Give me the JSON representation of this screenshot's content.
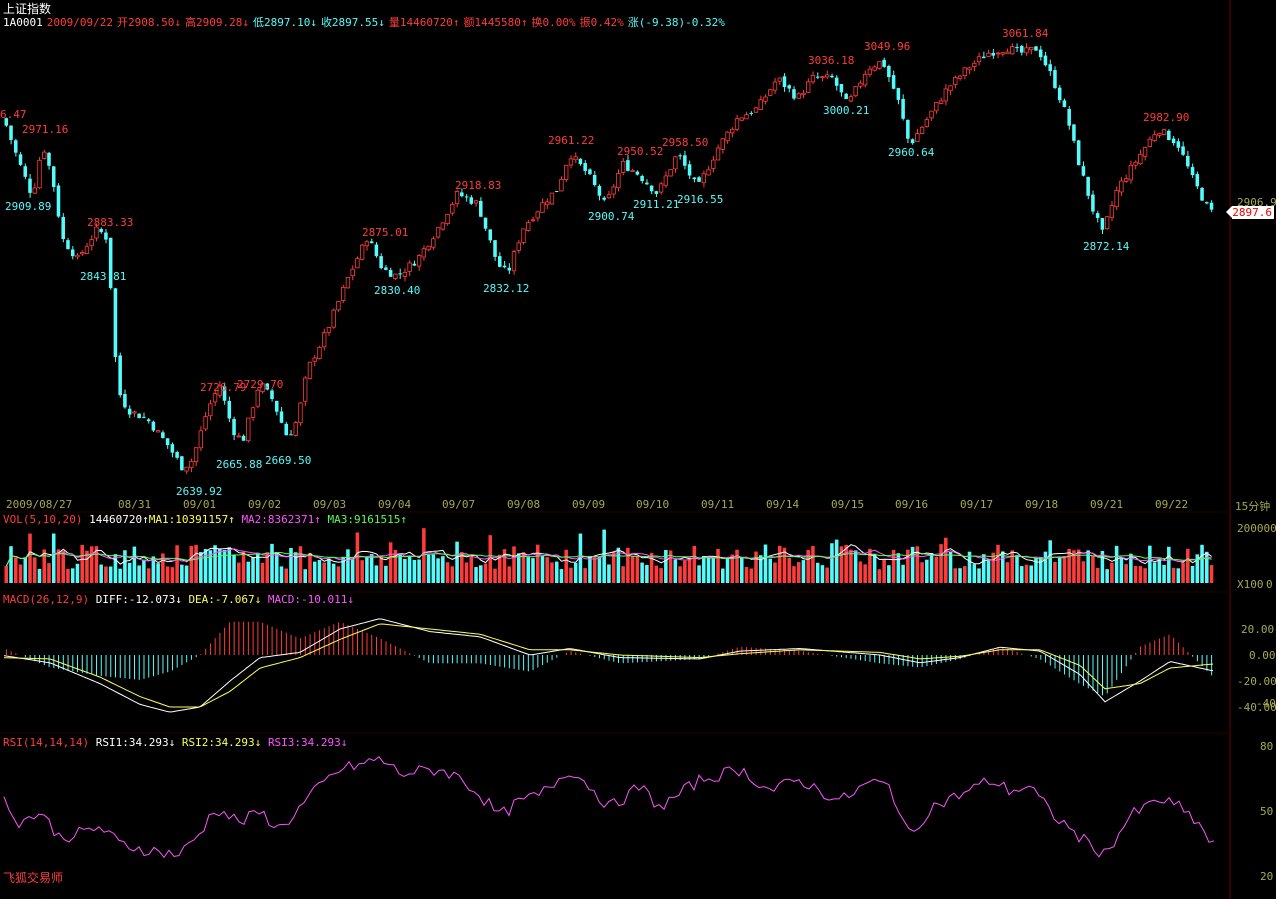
{
  "header": {
    "title": "上证指数",
    "code": "1A0001",
    "date": "2009/09/22",
    "open": "开2908.50↓",
    "high": "高2909.28↓",
    "low": "低2897.10↓",
    "close": "收2897.55↓",
    "volume": "量14460720↑",
    "amount": "额1445580↑",
    "turnover": "换0.00%",
    "amplitude": "振0.42%",
    "change": "涨(-9.38)-0.32%"
  },
  "colors": {
    "bg": "#000000",
    "up": "#ff3c3c",
    "down": "#54fcfc",
    "ma1": "#ffffff",
    "ma2": "#ff54ff",
    "ma3": "#54ff54",
    "diff": "#ffffff",
    "dea": "#ffff54",
    "rsi": "#ff54ff",
    "axis": "#a8a854"
  },
  "price_panel": {
    "high_labels": [
      "6.47",
      "2971.16",
      "2883.33",
      "2726.79",
      "2729.70",
      "2875.01",
      "2918.83",
      "2961.22",
      "2950.52",
      "2958.50",
      "3036.18",
      "3049.96",
      "3061.84",
      "2982.90"
    ],
    "low_labels": [
      "2909.89",
      "2843.81",
      "2639.92",
      "2665.88",
      "2669.50",
      "2830.40",
      "2832.12",
      "2900.74",
      "2911.21",
      "2916.55",
      "3000.21",
      "2960.64",
      "2872.14"
    ],
    "right_axis_value": "2906.9",
    "current_price": "2897.6",
    "dates": [
      "2009/08/27",
      "08/31",
      "09/01",
      "09/02",
      "09/03",
      "09/04",
      "09/07",
      "09/08",
      "09/09",
      "09/10",
      "09/11",
      "09/14",
      "09/15",
      "09/16",
      "09/17",
      "09/18",
      "09/21",
      "09/22"
    ],
    "period": "15分钟"
  },
  "vol_panel": {
    "name": "VOL(5,10,20)",
    "value": "14460720↑",
    "ma1": "MA1:10391157↑",
    "ma2": "MA2:8362371↑",
    "ma3": "MA3:9161515↑",
    "axis_top": "200000",
    "axis_unit": "X100",
    "axis_zero": "0"
  },
  "macd_panel": {
    "name": "MACD(26,12,9)",
    "diff": "DIFF:-12.073↓",
    "dea": "DEA:-7.067↓",
    "macd": "MACD:-10.011↓",
    "axis": [
      "20.00",
      "0.00",
      "-20.00",
      "-40.00"
    ],
    "axis_overlap": "-40"
  },
  "rsi_panel": {
    "name": "RSI(14,14,14)",
    "rsi1": "RSI1:34.293↓",
    "rsi2": "RSI2:34.293↓",
    "rsi3": "RSI3:34.293↓",
    "axis": [
      "80",
      "50",
      "20"
    ]
  },
  "watermark": "飞狐交易师",
  "chart_data": {
    "type": "candlestick",
    "price_path": [
      [
        0,
        2995
      ],
      [
        8,
        2985
      ],
      [
        20,
        2950
      ],
      [
        35,
        2912
      ],
      [
        45,
        2965
      ],
      [
        55,
        2930
      ],
      [
        65,
        2870
      ],
      [
        80,
        2850
      ],
      [
        90,
        2865
      ],
      [
        100,
        2880
      ],
      [
        110,
        2870
      ],
      [
        120,
        2720
      ],
      [
        130,
        2700
      ],
      [
        150,
        2690
      ],
      [
        170,
        2665
      ],
      [
        185,
        2642
      ],
      [
        195,
        2650
      ],
      [
        210,
        2700
      ],
      [
        222,
        2725
      ],
      [
        235,
        2680
      ],
      [
        245,
        2668
      ],
      [
        262,
        2727
      ],
      [
        275,
        2710
      ],
      [
        290,
        2672
      ],
      [
        300,
        2690
      ],
      [
        310,
        2740
      ],
      [
        330,
        2780
      ],
      [
        350,
        2830
      ],
      [
        370,
        2872
      ],
      [
        385,
        2840
      ],
      [
        400,
        2833
      ],
      [
        420,
        2850
      ],
      [
        440,
        2880
      ],
      [
        460,
        2915
      ],
      [
        480,
        2905
      ],
      [
        500,
        2845
      ],
      [
        510,
        2835
      ],
      [
        525,
        2880
      ],
      [
        545,
        2905
      ],
      [
        560,
        2920
      ],
      [
        572,
        2955
      ],
      [
        590,
        2935
      ],
      [
        608,
        2903
      ],
      [
        625,
        2945
      ],
      [
        640,
        2935
      ],
      [
        660,
        2915
      ],
      [
        680,
        2955
      ],
      [
        700,
        2920
      ],
      [
        720,
        2960
      ],
      [
        740,
        2990
      ],
      [
        760,
        3000
      ],
      [
        780,
        3030
      ],
      [
        800,
        3010
      ],
      [
        815,
        3030
      ],
      [
        835,
        3030
      ],
      [
        850,
        3003
      ],
      [
        870,
        3040
      ],
      [
        885,
        3047
      ],
      [
        900,
        3010
      ],
      [
        912,
        2963
      ],
      [
        930,
        2990
      ],
      [
        950,
        3020
      ],
      [
        970,
        3040
      ],
      [
        990,
        3055
      ],
      [
        1010,
        3060
      ],
      [
        1025,
        3055
      ],
      [
        1040,
        3060
      ],
      [
        1055,
        3030
      ],
      [
        1070,
        2990
      ],
      [
        1080,
        2950
      ],
      [
        1095,
        2900
      ],
      [
        1105,
        2875
      ],
      [
        1120,
        2920
      ],
      [
        1140,
        2950
      ],
      [
        1160,
        2980
      ],
      [
        1180,
        2965
      ],
      [
        1195,
        2930
      ],
      [
        1212,
        2897
      ]
    ],
    "price_ylim": [
      2620,
      3080
    ],
    "macd_diff_path": [
      [
        0,
        0
      ],
      [
        50,
        -6
      ],
      [
        100,
        -22
      ],
      [
        140,
        -38
      ],
      [
        170,
        -44
      ],
      [
        200,
        -40
      ],
      [
        230,
        -20
      ],
      [
        260,
        -2
      ],
      [
        300,
        2
      ],
      [
        340,
        20
      ],
      [
        380,
        28
      ],
      [
        430,
        18
      ],
      [
        480,
        14
      ],
      [
        530,
        0
      ],
      [
        570,
        5
      ],
      [
        620,
        -2
      ],
      [
        700,
        -3
      ],
      [
        740,
        3
      ],
      [
        800,
        5
      ],
      [
        880,
        0
      ],
      [
        920,
        -6
      ],
      [
        960,
        -2
      ],
      [
        1000,
        6
      ],
      [
        1040,
        3
      ],
      [
        1080,
        -15
      ],
      [
        1105,
        -36
      ],
      [
        1140,
        -20
      ],
      [
        1170,
        -5
      ],
      [
        1212,
        -12
      ]
    ],
    "macd_dea_path": [
      [
        0,
        -2
      ],
      [
        50,
        -3
      ],
      [
        100,
        -17
      ],
      [
        140,
        -32
      ],
      [
        170,
        -40
      ],
      [
        200,
        -40
      ],
      [
        230,
        -28
      ],
      [
        260,
        -10
      ],
      [
        300,
        -2
      ],
      [
        340,
        12
      ],
      [
        380,
        24
      ],
      [
        430,
        20
      ],
      [
        480,
        16
      ],
      [
        530,
        4
      ],
      [
        570,
        4
      ],
      [
        620,
        0
      ],
      [
        700,
        -2
      ],
      [
        740,
        1
      ],
      [
        800,
        4
      ],
      [
        880,
        2
      ],
      [
        920,
        -3
      ],
      [
        960,
        -1
      ],
      [
        1000,
        4
      ],
      [
        1040,
        4
      ],
      [
        1080,
        -8
      ],
      [
        1105,
        -26
      ],
      [
        1140,
        -22
      ],
      [
        1170,
        -10
      ],
      [
        1212,
        -7
      ]
    ],
    "macd_ylim": [
      -45,
      30
    ],
    "rsi_path": [
      [
        0,
        58
      ],
      [
        20,
        45
      ],
      [
        40,
        50
      ],
      [
        60,
        38
      ],
      [
        80,
        40
      ],
      [
        100,
        43
      ],
      [
        120,
        35
      ],
      [
        150,
        32
      ],
      [
        180,
        30
      ],
      [
        200,
        40
      ],
      [
        215,
        52
      ],
      [
        240,
        45
      ],
      [
        260,
        50
      ],
      [
        280,
        42
      ],
      [
        300,
        52
      ],
      [
        320,
        62
      ],
      [
        340,
        70
      ],
      [
        360,
        72
      ],
      [
        380,
        75
      ],
      [
        400,
        68
      ],
      [
        440,
        70
      ],
      [
        460,
        66
      ],
      [
        480,
        58
      ],
      [
        500,
        48
      ],
      [
        520,
        55
      ],
      [
        540,
        58
      ],
      [
        570,
        70
      ],
      [
        590,
        62
      ],
      [
        610,
        52
      ],
      [
        640,
        62
      ],
      [
        660,
        52
      ],
      [
        700,
        65
      ],
      [
        740,
        70
      ],
      [
        770,
        60
      ],
      [
        800,
        65
      ],
      [
        840,
        55
      ],
      [
        870,
        64
      ],
      [
        890,
        62
      ],
      [
        910,
        38
      ],
      [
        930,
        52
      ],
      [
        960,
        58
      ],
      [
        990,
        65
      ],
      [
        1010,
        60
      ],
      [
        1030,
        62
      ],
      [
        1050,
        50
      ],
      [
        1080,
        38
      ],
      [
        1105,
        30
      ],
      [
        1130,
        48
      ],
      [
        1160,
        56
      ],
      [
        1180,
        52
      ],
      [
        1200,
        44
      ],
      [
        1212,
        34
      ]
    ],
    "rsi_ylim": [
      20,
      80
    ]
  }
}
